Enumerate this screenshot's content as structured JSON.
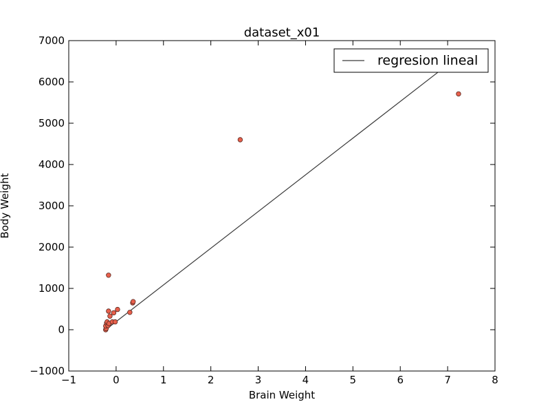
{
  "chart_data": {
    "type": "scatter",
    "title": "dataset_x01",
    "xlabel": "Brain Weight",
    "ylabel": "Body Weight",
    "xlim": [
      -1,
      8
    ],
    "ylim": [
      -1000,
      7000
    ],
    "xticks": [
      "−1",
      "0",
      "1",
      "2",
      "3",
      "4",
      "5",
      "6",
      "7",
      "8"
    ],
    "yticks": [
      "−1000",
      "0",
      "1000",
      "2000",
      "3000",
      "4000",
      "5000",
      "6000",
      "7000"
    ],
    "grid": false,
    "legend": {
      "position": "top-right",
      "entries": [
        "regresion lineal"
      ]
    },
    "colors": {
      "points": "#e8604c",
      "point_edge": "#5a2a22",
      "line": "#3a3a3a"
    },
    "series": [
      {
        "type": "scatter",
        "points": [
          [
            -0.22,
            0
          ],
          [
            -0.21,
            30
          ],
          [
            -0.22,
            90
          ],
          [
            -0.2,
            160
          ],
          [
            -0.19,
            190
          ],
          [
            -0.17,
            100
          ],
          [
            -0.15,
            150
          ],
          [
            -0.13,
            330
          ],
          [
            -0.16,
            450
          ],
          [
            -0.08,
            190
          ],
          [
            -0.05,
            410
          ],
          [
            -0.02,
            190
          ],
          [
            0.03,
            490
          ],
          [
            -0.16,
            1320
          ],
          [
            0.29,
            420
          ],
          [
            0.35,
            650
          ],
          [
            0.36,
            680
          ],
          [
            2.62,
            4600
          ],
          [
            7.23,
            5710
          ]
        ]
      },
      {
        "name": "regresion lineal",
        "type": "line",
        "x": [
          -0.22,
          7.23
        ],
        "y": [
          0,
          6620
        ]
      }
    ]
  }
}
